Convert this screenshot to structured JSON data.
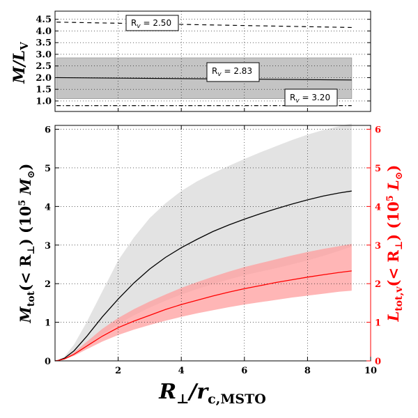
{
  "chart_data": [
    {
      "id": "top-panel",
      "type": "line",
      "ylabel": "M/L_V",
      "xlim": [
        0,
        10
      ],
      "ylim": [
        0.55,
        4.85
      ],
      "grid": true,
      "y_ticks": [
        "4.5",
        "4.0",
        "3.5",
        "3.0",
        "2.5",
        "2.0",
        "1.5",
        "1.0"
      ],
      "y_tick_values": [
        4.5,
        4.0,
        3.5,
        3.0,
        2.5,
        2.0,
        1.5,
        1.0
      ],
      "series": [
        {
          "name": "R_v = 2.50",
          "style": "dashed",
          "x": [
            0.05,
            9.4
          ],
          "y": [
            4.38,
            4.15
          ]
        },
        {
          "name": "R_v = 2.83",
          "style": "solid",
          "x": [
            0.05,
            9.4
          ],
          "y": [
            2.0,
            1.9
          ],
          "band": [
            [
              1.1,
              2.85
            ],
            [
              1.1,
              2.85
            ]
          ]
        },
        {
          "name": "R_v = 3.20",
          "style": "dashdot",
          "x": [
            0.05,
            9.4
          ],
          "y": [
            0.8,
            0.8
          ]
        }
      ],
      "annotations": [
        {
          "label": "R",
          "sub": "v",
          "value": " = 2.50"
        },
        {
          "label": "R",
          "sub": "v",
          "value": " = 2.83"
        },
        {
          "label": "R",
          "sub": "v",
          "value": " = 3.20"
        }
      ]
    },
    {
      "id": "bottom-panel",
      "type": "line",
      "xlabel": "R_⊥/r_c,MSTO",
      "ylabel_left": "M_tot(< R_⊥) (10^5 M_⊙)",
      "ylabel_right": "L_tot,v(< R_⊥) (10^5 L_⊙)",
      "xlim": [
        0,
        10
      ],
      "ylim": [
        0,
        6.1
      ],
      "grid": true,
      "x_ticks": [
        "2",
        "4",
        "6",
        "8",
        "10"
      ],
      "x_tick_values": [
        2,
        4,
        6,
        8,
        10
      ],
      "y_ticks_left": [
        "0",
        "1",
        "2",
        "3",
        "4",
        "5",
        "6"
      ],
      "y_ticks_right": [
        "0",
        "1",
        "2",
        "3",
        "4",
        "5",
        "6"
      ],
      "y_tick_values": [
        0,
        1,
        2,
        3,
        4,
        5,
        6
      ],
      "series": [
        {
          "name": "M_tot",
          "color": "#000000",
          "x": [
            0.0,
            0.1,
            0.3,
            0.6,
            1.0,
            1.5,
            2.0,
            2.5,
            3.0,
            3.5,
            4.0,
            4.5,
            5.0,
            5.5,
            6.0,
            6.5,
            7.0,
            7.5,
            8.0,
            8.5,
            9.0,
            9.4
          ],
          "y": [
            0.0,
            0.01,
            0.07,
            0.26,
            0.63,
            1.14,
            1.6,
            2.02,
            2.38,
            2.68,
            2.93,
            3.15,
            3.35,
            3.52,
            3.67,
            3.81,
            3.94,
            4.06,
            4.17,
            4.27,
            4.35,
            4.4
          ],
          "band_color": "#e3e3e3",
          "band_lower": [
            0.0,
            0.01,
            0.05,
            0.16,
            0.38,
            0.68,
            0.95,
            1.18,
            1.38,
            1.56,
            1.72,
            1.86,
            1.99,
            2.11,
            2.22,
            2.31,
            2.4,
            2.5,
            2.6,
            2.72,
            2.85,
            2.96
          ],
          "band_upper": [
            0.0,
            0.02,
            0.11,
            0.42,
            1.0,
            1.8,
            2.6,
            3.2,
            3.7,
            4.08,
            4.4,
            4.65,
            4.86,
            5.05,
            5.23,
            5.4,
            5.56,
            5.72,
            5.86,
            5.98,
            6.08,
            6.15
          ]
        },
        {
          "name": "L_tot,v",
          "color": "#ff0000",
          "x": [
            0.0,
            0.1,
            0.3,
            0.6,
            1.0,
            1.5,
            2.0,
            2.5,
            3.0,
            3.5,
            4.0,
            4.5,
            5.0,
            5.5,
            6.0,
            6.5,
            7.0,
            7.5,
            8.0,
            8.5,
            9.0,
            9.4
          ],
          "y": [
            0.0,
            0.01,
            0.05,
            0.17,
            0.38,
            0.64,
            0.86,
            1.03,
            1.18,
            1.33,
            1.46,
            1.57,
            1.68,
            1.78,
            1.87,
            1.95,
            2.03,
            2.1,
            2.17,
            2.23,
            2.29,
            2.33
          ],
          "band_color": "#ff9e9e",
          "band_lower": [
            0.0,
            0.01,
            0.04,
            0.13,
            0.3,
            0.5,
            0.67,
            0.81,
            0.93,
            1.04,
            1.14,
            1.23,
            1.31,
            1.39,
            1.46,
            1.52,
            1.58,
            1.64,
            1.69,
            1.74,
            1.79,
            1.82
          ],
          "band_upper": [
            0.0,
            0.01,
            0.07,
            0.22,
            0.49,
            0.83,
            1.11,
            1.34,
            1.54,
            1.72,
            1.89,
            2.04,
            2.18,
            2.31,
            2.43,
            2.53,
            2.63,
            2.73,
            2.82,
            2.9,
            2.97,
            3.03
          ]
        }
      ]
    }
  ]
}
